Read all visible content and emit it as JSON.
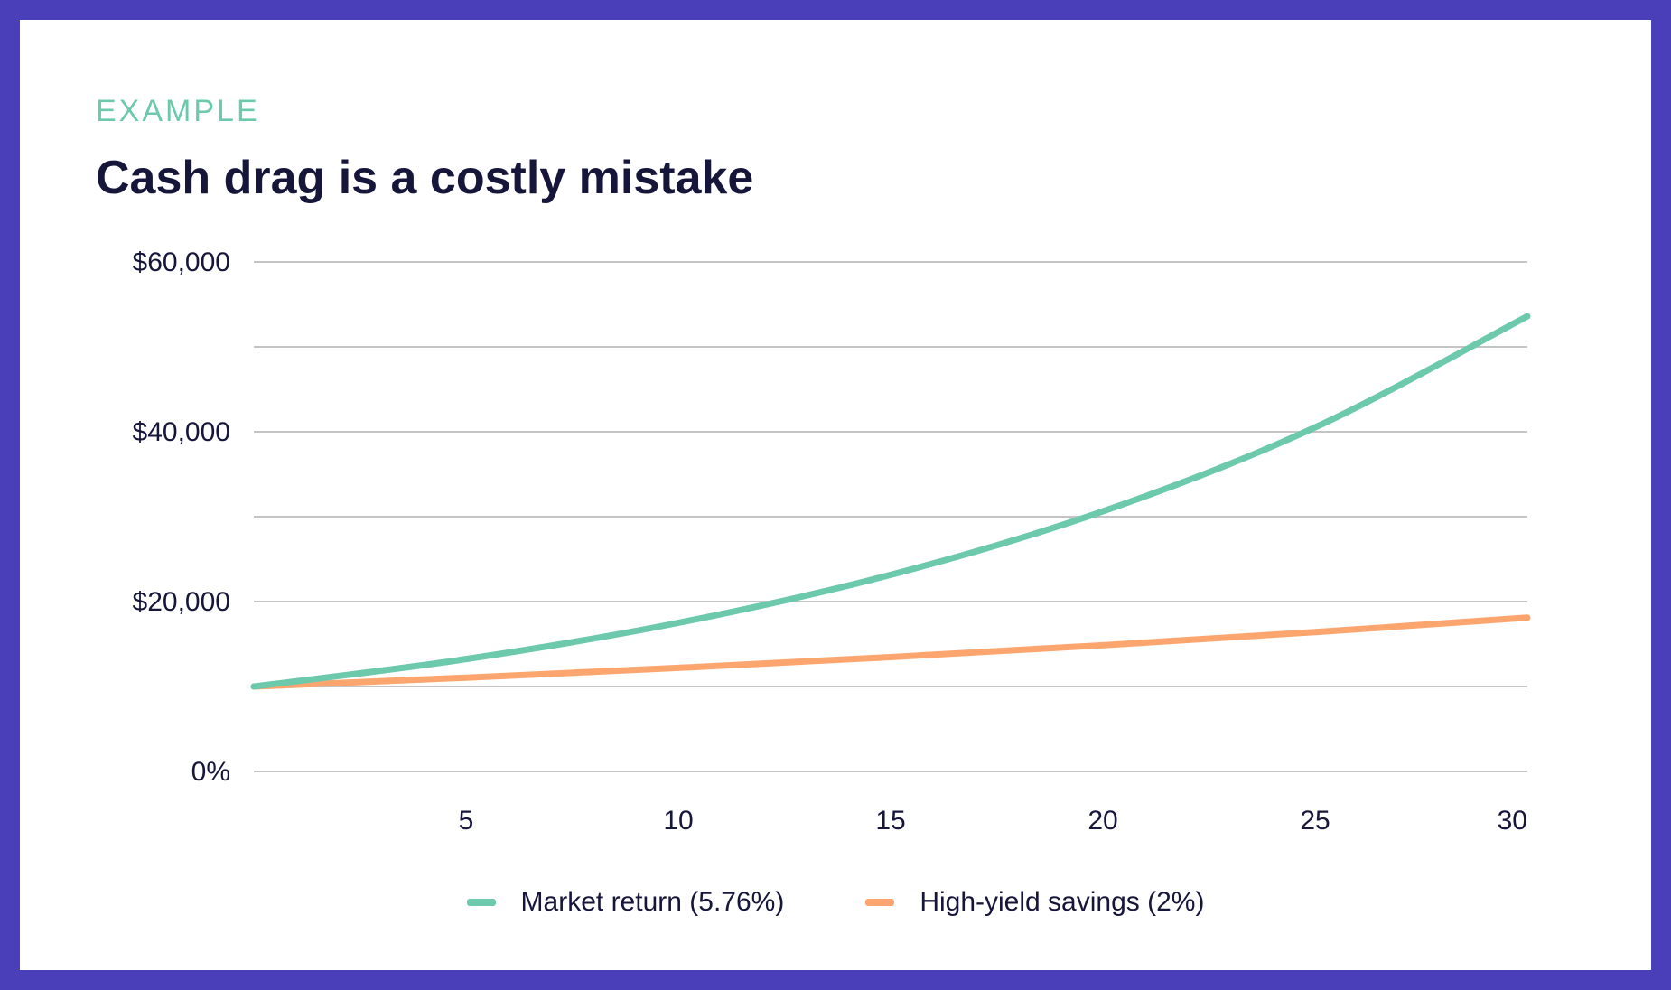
{
  "eyebrow": "EXAMPLE",
  "colors": {
    "frame": "#4a3fb8",
    "market": "#6cc9ab",
    "savings": "#fca56e",
    "grid": "#c4c4c4",
    "text": "#16163a"
  },
  "chart_data": {
    "type": "line",
    "title": "Cash drag is a costly mistake",
    "xlabel": "",
    "ylabel": "",
    "x": [
      0,
      5,
      10,
      15,
      20,
      25,
      30
    ],
    "xlim": [
      0,
      30
    ],
    "ylim": [
      0,
      60000
    ],
    "y_gridlines": [
      0,
      10000,
      20000,
      30000,
      40000,
      50000,
      60000
    ],
    "y_tick_labels": [
      {
        "value": 60000,
        "label": "$60,000"
      },
      {
        "value": 40000,
        "label": "$40,000"
      },
      {
        "value": 20000,
        "label": "$20,000"
      },
      {
        "value": 0,
        "label": "0%"
      }
    ],
    "x_tick_labels": [
      {
        "value": 5,
        "label": "5"
      },
      {
        "value": 10,
        "label": "10"
      },
      {
        "value": 15,
        "label": "15"
      },
      {
        "value": 20,
        "label": "20"
      },
      {
        "value": 25,
        "label": "25"
      },
      {
        "value": 30,
        "label": "30"
      }
    ],
    "series": [
      {
        "name": "Market return (5.76%)",
        "color": "#6cc9ab",
        "values": [
          10000,
          13230,
          17500,
          23150,
          30630,
          40520,
          53600
        ]
      },
      {
        "name": "High-yield savings (2%)",
        "color": "#fca56e",
        "values": [
          10000,
          11040,
          12190,
          13460,
          14860,
          16410,
          18110
        ]
      }
    ],
    "legend_position": "bottom-center",
    "grid": true
  }
}
